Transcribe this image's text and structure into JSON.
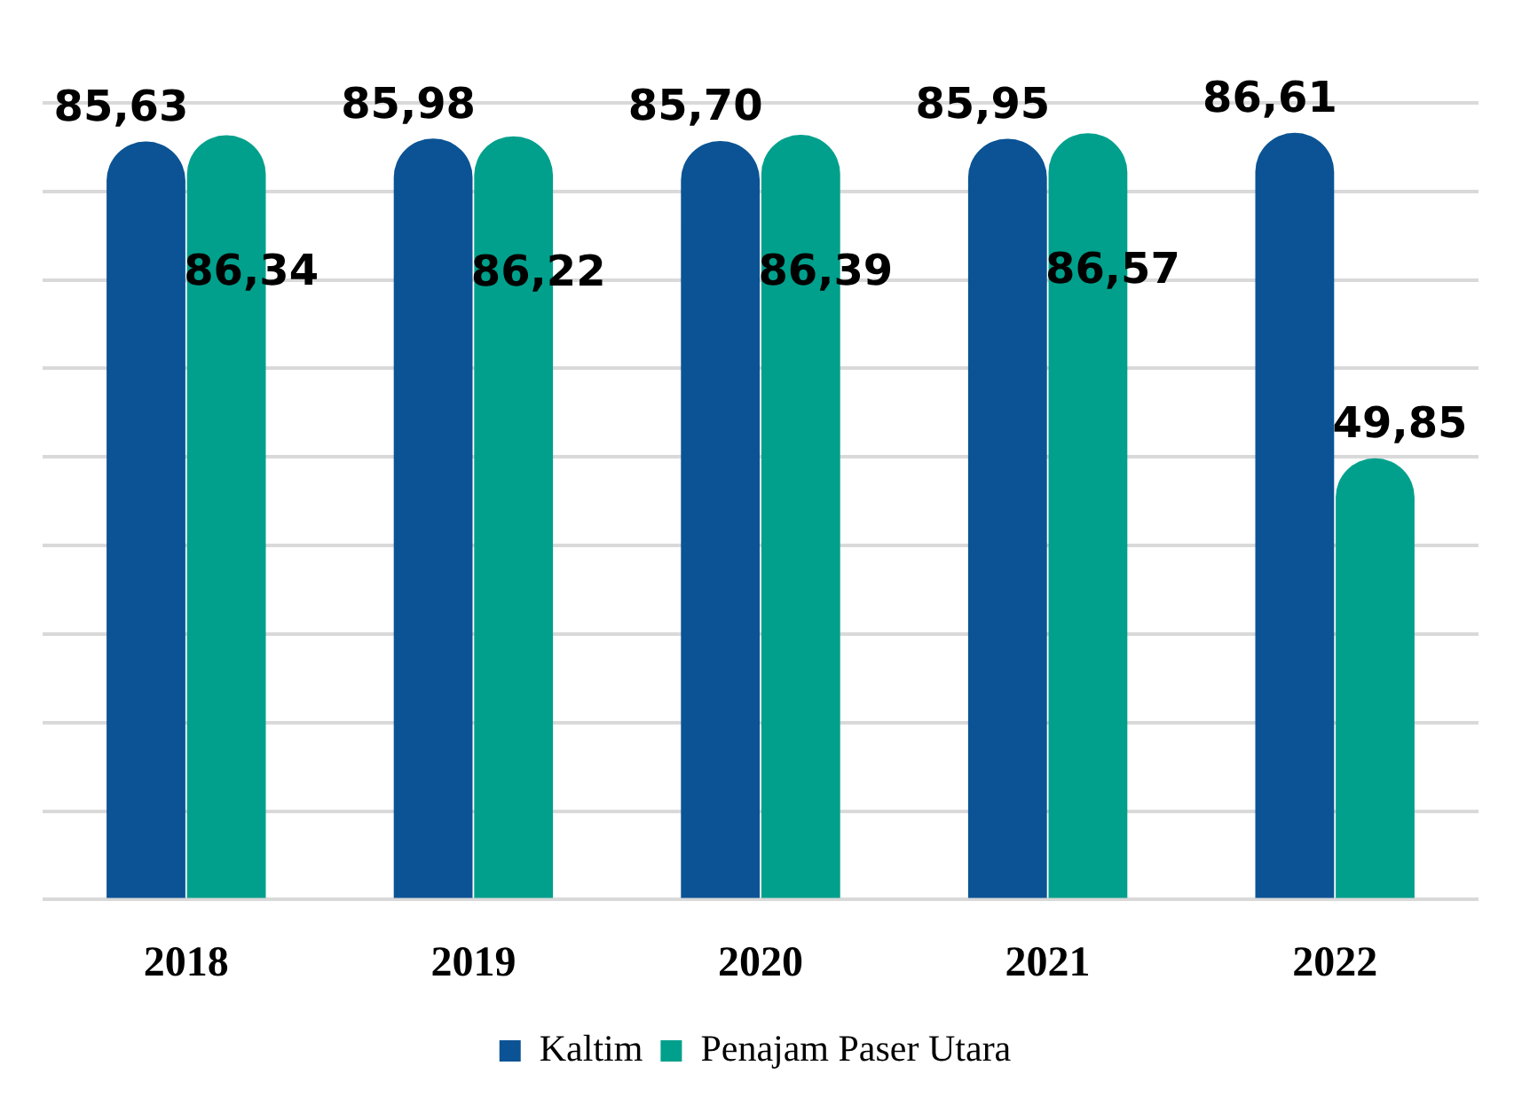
{
  "chart_data": {
    "type": "bar",
    "categories": [
      "2018",
      "2019",
      "2020",
      "2021",
      "2022"
    ],
    "series": [
      {
        "name": "Kaltim",
        "color": "#0b5394",
        "values": [
          85.63,
          85.98,
          85.7,
          85.95,
          86.61
        ],
        "value_labels": [
          "85,63",
          "85,98",
          "85,70",
          "85,95",
          "86,61"
        ]
      },
      {
        "name": "Penajam Paser Utara",
        "color": "#00a08c",
        "values": [
          86.34,
          86.22,
          86.39,
          86.57,
          49.85
        ],
        "value_labels": [
          "86,34",
          "86,22",
          "86,39",
          "86,57",
          "49,85"
        ]
      }
    ],
    "ylim": [
      0,
      90
    ],
    "yticks": [
      {
        "value": 0,
        "label": null
      },
      {
        "value": 10,
        "label": null
      },
      {
        "value": 20,
        "label": null
      },
      {
        "value": 30,
        "label": null
      },
      {
        "value": 40,
        "label": null
      },
      {
        "value": 50,
        "label": null
      },
      {
        "value": 60,
        "label": null
      },
      {
        "value": 70,
        "label": null
      },
      {
        "value": 80,
        "label": null
      },
      {
        "value": 90,
        "label": null
      }
    ],
    "grid": "y",
    "legend": "bottom"
  }
}
